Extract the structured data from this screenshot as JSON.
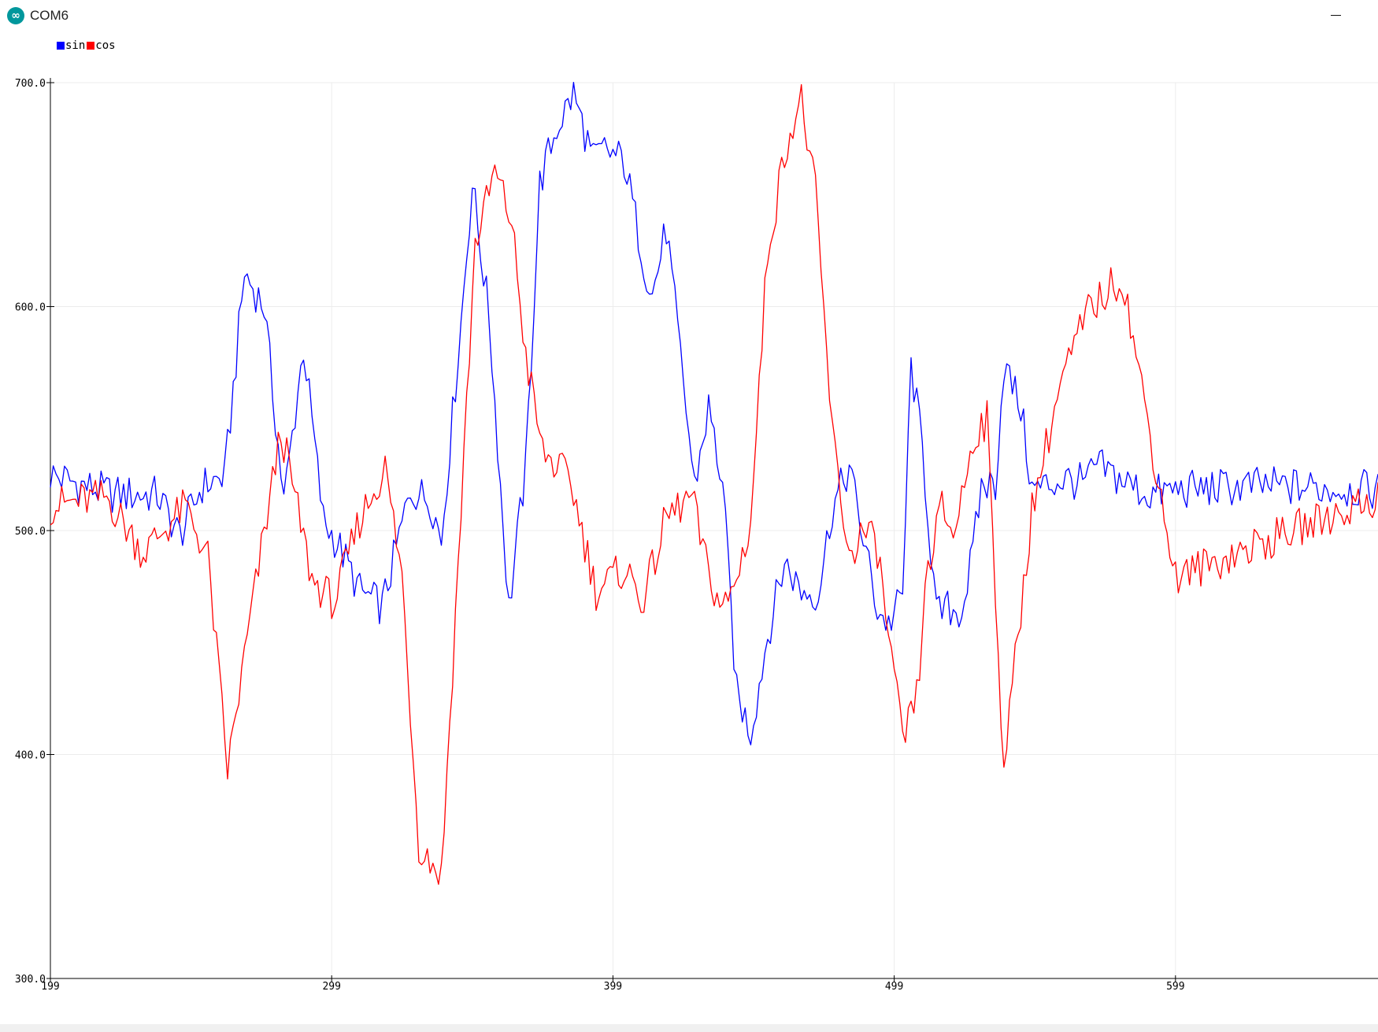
{
  "window": {
    "title": "COM6",
    "icon": "arduino-infinity-icon",
    "icon_glyph": "∞"
  },
  "legend": [
    {
      "name": "sin",
      "color": "#0000ff"
    },
    {
      "name": "cos",
      "color": "#ff0000"
    }
  ],
  "chart_data": {
    "type": "line",
    "title": "",
    "xlabel": "",
    "ylabel": "",
    "xlim": [
      199,
      671
    ],
    "ylim": [
      300,
      700
    ],
    "x_ticks": [
      199,
      299,
      399,
      499,
      599
    ],
    "y_ticks": [
      300,
      400,
      500,
      600,
      700
    ],
    "x_tick_labels": [
      "199",
      "299",
      "399",
      "499",
      "599"
    ],
    "y_tick_labels": [
      "300.0",
      "400.0",
      "500.0",
      "600.0",
      "700.0"
    ],
    "grid": true,
    "legend_position": "top-left",
    "series": [
      {
        "name": "sin",
        "color": "#0000ff",
        "x": [
          199,
          211,
          222,
          237,
          245,
          253,
          261,
          268,
          275,
          282,
          289,
          296,
          302,
          309,
          317,
          327,
          334,
          338,
          345,
          349,
          355,
          362,
          368,
          373,
          379,
          385,
          392,
          396,
          403,
          410,
          413,
          418,
          428,
          433,
          438,
          443,
          448,
          454,
          460,
          466,
          472,
          477,
          483,
          493,
          497,
          502,
          505,
          509,
          514,
          518,
          523,
          527,
          530,
          535,
          538,
          544,
          548,
          560,
          567,
          571,
          589,
          599,
          630,
          671
        ],
        "y": [
          525,
          520,
          516,
          516,
          498,
          520,
          524,
          615,
          600,
          513,
          582,
          505,
          492,
          473,
          466,
          518,
          514,
          496,
          593,
          655,
          595,
          465,
          528,
          655,
          680,
          695,
          665,
          670,
          665,
          620,
          605,
          635,
          520,
          555,
          520,
          427,
          410,
          453,
          486,
          473,
          472,
          510,
          528,
          465,
          458,
          471,
          574,
          537,
          462,
          465,
          464,
          490,
          520,
          521,
          574,
          555,
          518,
          523,
          521,
          529,
          516,
          518,
          520,
          518
        ]
      },
      {
        "name": "cos",
        "color": "#ff0000",
        "x": [
          199,
          219,
          232,
          247,
          255,
          262,
          270,
          281,
          292,
          300,
          309,
          318,
          324,
          330,
          338,
          343,
          350,
          357,
          363,
          368,
          374,
          384,
          393,
          403,
          410,
          418,
          427,
          433,
          438,
          442,
          448,
          454,
          461,
          466,
          471,
          477,
          483,
          488,
          493,
          497,
          502,
          507,
          511,
          516,
          520,
          528,
          532,
          538,
          548,
          558,
          568,
          580,
          599,
          671
        ],
        "y": [
          511,
          515,
          490,
          511,
          488,
          393,
          460,
          545,
          478,
          468,
          505,
          528,
          480,
          360,
          346,
          462,
          628,
          660,
          638,
          578,
          535,
          522,
          473,
          483,
          469,
          506,
          515,
          480,
          465,
          474,
          504,
          625,
          675,
          692,
          650,
          543,
          488,
          500,
          492,
          452,
          405,
          425,
          484,
          510,
          498,
          545,
          549,
          395,
          510,
          565,
          598,
          614,
          479,
          515
        ]
      }
    ]
  }
}
